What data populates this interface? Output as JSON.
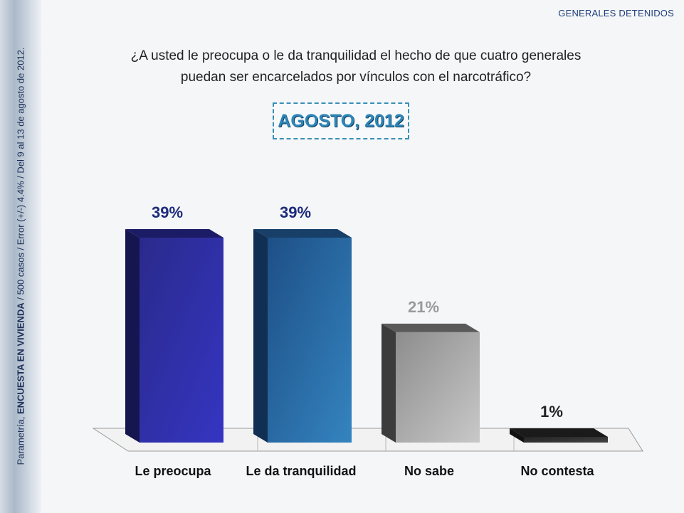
{
  "header": {
    "section_tag": "GENERALES DETENIDOS",
    "question_line1": "¿A usted le preocupa o le da tranquilidad el hecho de que cuatro generales",
    "question_line2": "puedan ser encarcelados por vínculos con el narcotráfico?",
    "date_badge": "AGOSTO, 2012"
  },
  "side_note": {
    "prefix": "Parametría, ",
    "bold": "ENCUESTA EN VIVIENDA",
    "suffix": " / 500 casos / Error (+/-) 4.4% / Del 9 al 13 de agosto de 2012."
  },
  "colors": {
    "le_preocupa": "#2b2a9a",
    "le_da_tranquilidad": "#2a6aa6",
    "no_sabe": "#a5a5a5",
    "no_contesta": "#333333",
    "label_blue": "#1d2b7a",
    "label_gray": "#9a9a9a"
  },
  "chart_data": {
    "type": "bar",
    "categories": [
      "Le preocupa",
      "Le da tranquilidad",
      "No sabe",
      "No contesta"
    ],
    "values": [
      39,
      39,
      21,
      1
    ],
    "value_labels": [
      "39%",
      "39%",
      "21%",
      "1%"
    ],
    "ylim": [
      0,
      40
    ],
    "grid": false,
    "legend": "none"
  }
}
